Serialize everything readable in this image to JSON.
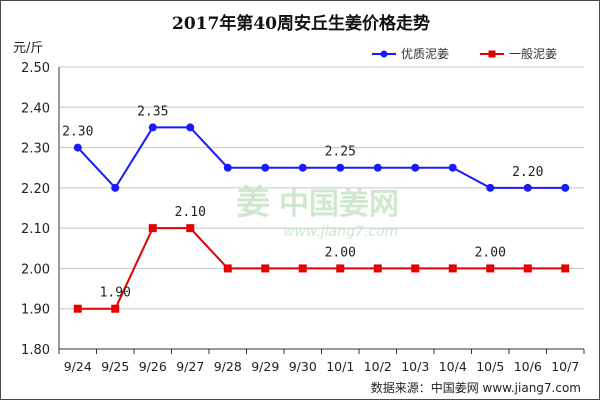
{
  "title": "2017年第40周安丘生姜价格走势",
  "unit_label": "元/斤",
  "source_label": "数据来源：中国姜网 www.jiang7.com",
  "watermark": {
    "brand": "中国姜网",
    "url": "www.jiang7.com",
    "glyph": "姜"
  },
  "colors": {
    "series1": "#1a1aff",
    "series2": "#e60000",
    "grid": "#c8c8c8",
    "axis": "#333333",
    "watermark": "#cfe8cf"
  },
  "chart_data": {
    "type": "line",
    "title": "2017年第40周安丘生姜价格走势",
    "ylabel": "元/斤",
    "categories": [
      "9/24",
      "9/25",
      "9/26",
      "9/27",
      "9/28",
      "9/29",
      "9/30",
      "10/1",
      "10/2",
      "10/3",
      "10/4",
      "10/5",
      "10/6",
      "10/7"
    ],
    "ylim": [
      1.8,
      2.5
    ],
    "yticks": [
      "1.80",
      "1.90",
      "2.00",
      "2.10",
      "2.20",
      "2.30",
      "2.40",
      "2.50"
    ],
    "grid": true,
    "legend_position": "top-right",
    "series": [
      {
        "name": "优质泥姜",
        "color": "#1a1aff",
        "marker": "circle",
        "values": [
          2.3,
          2.2,
          2.35,
          2.35,
          2.25,
          2.25,
          2.25,
          2.25,
          2.25,
          2.25,
          2.25,
          2.2,
          2.2,
          2.2
        ]
      },
      {
        "name": "一般泥姜",
        "color": "#e60000",
        "marker": "square",
        "values": [
          1.9,
          1.9,
          2.1,
          2.1,
          2.0,
          2.0,
          2.0,
          2.0,
          2.0,
          2.0,
          2.0,
          2.0,
          2.0,
          2.0
        ]
      }
    ],
    "annotations": [
      {
        "series": 0,
        "index": 0,
        "text": "2.30"
      },
      {
        "series": 0,
        "index": 2,
        "text": "2.35"
      },
      {
        "series": 0,
        "index": 7,
        "text": "2.25"
      },
      {
        "series": 0,
        "index": 12,
        "text": "2.20"
      },
      {
        "series": 1,
        "index": 1,
        "text": "1.90"
      },
      {
        "series": 1,
        "index": 3,
        "text": "2.10"
      },
      {
        "series": 1,
        "index": 7,
        "text": "2.00"
      },
      {
        "series": 1,
        "index": 11,
        "text": "2.00"
      }
    ]
  }
}
